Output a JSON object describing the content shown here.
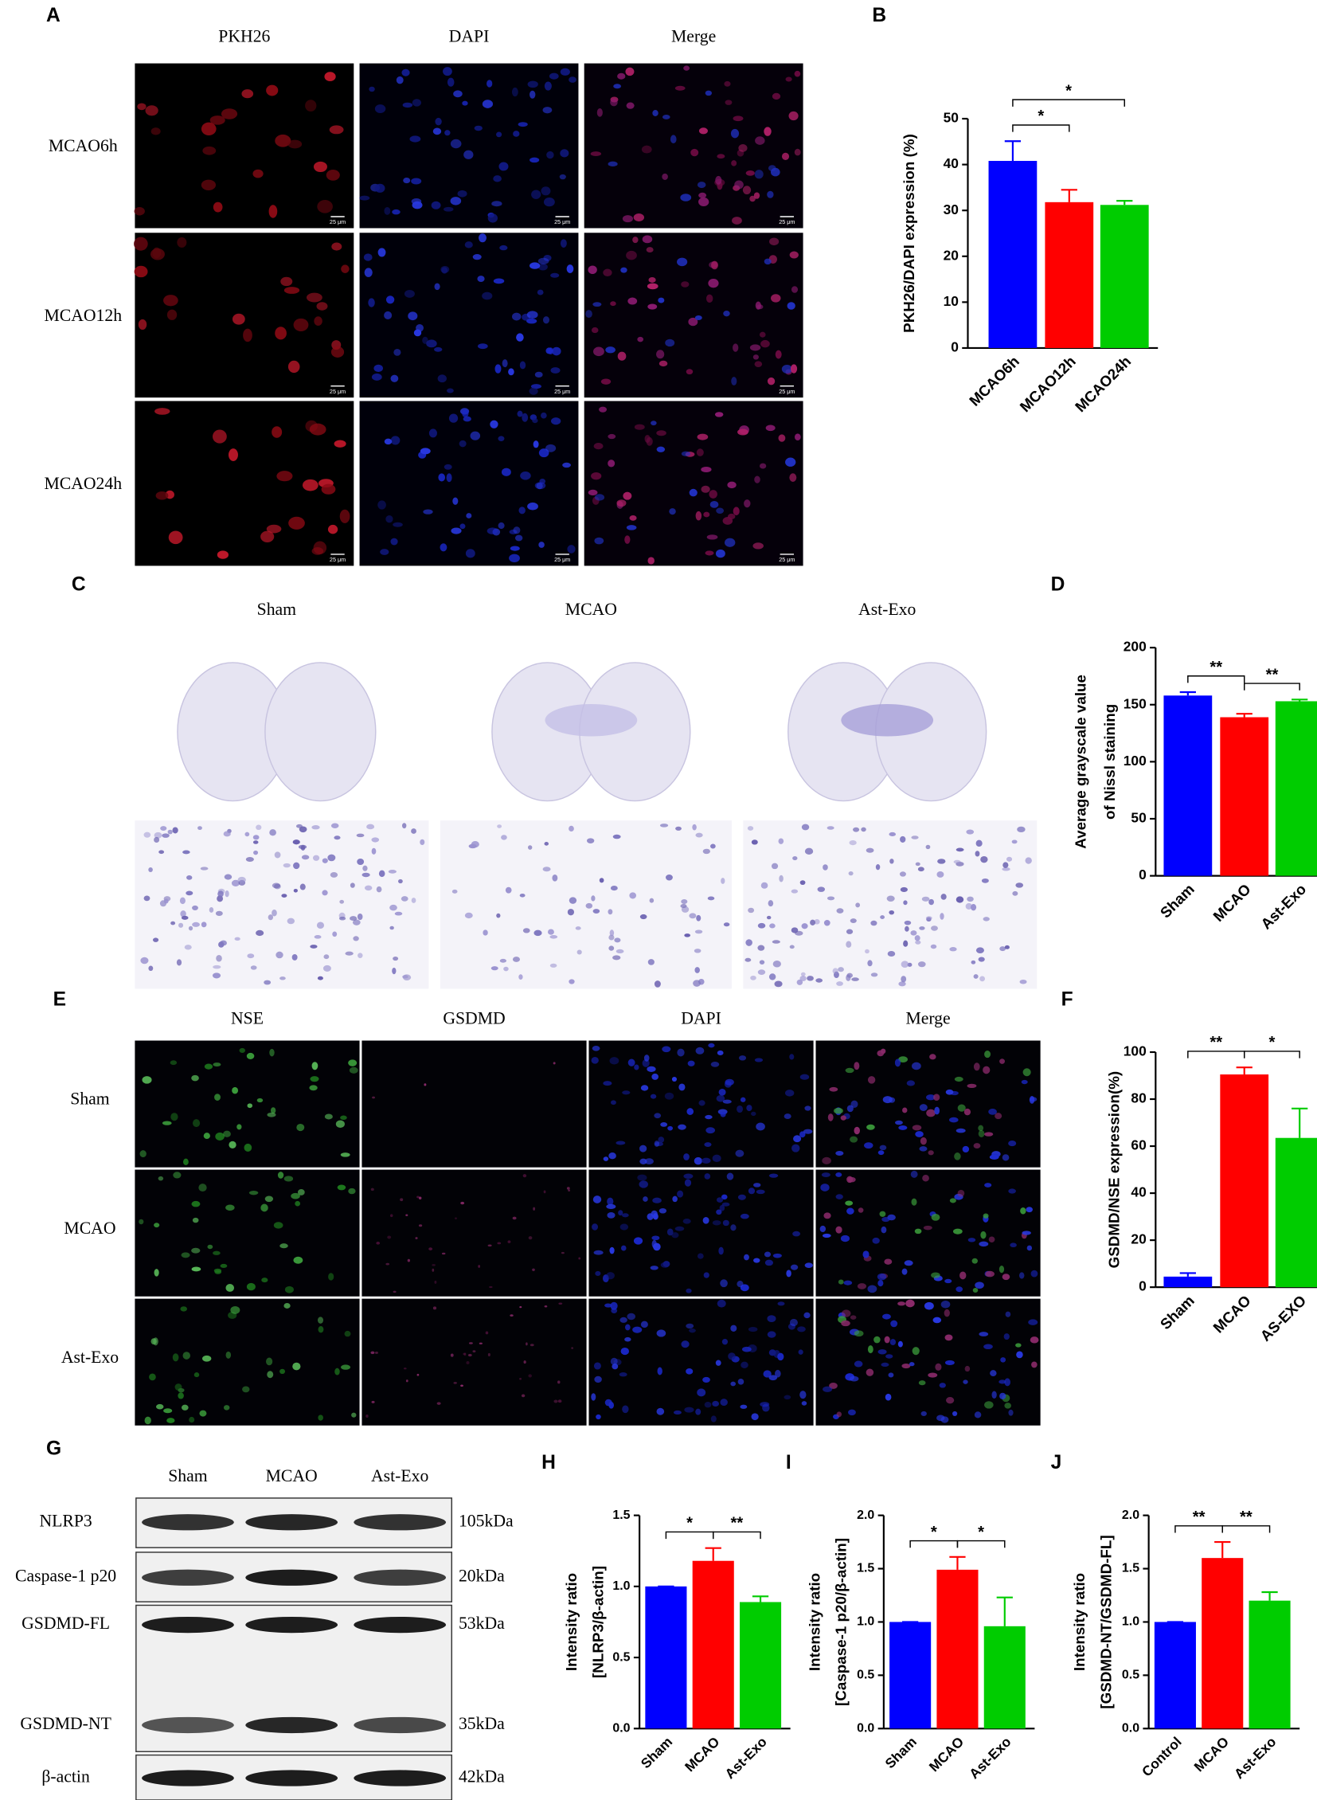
{
  "panels": {
    "A": {
      "label": "A",
      "columns": [
        "PKH26",
        "DAPI",
        "Merge"
      ],
      "rows": [
        "MCAO6h",
        "MCAO12h",
        "MCAO24h"
      ],
      "scale_bar": "25 μm"
    },
    "C": {
      "label": "C",
      "columns": [
        "Sham",
        "MCAO",
        "Ast-Exo"
      ]
    },
    "E": {
      "label": "E",
      "columns": [
        "NSE",
        "GSDMD",
        "DAPI",
        "Merge"
      ],
      "rows": [
        "Sham",
        "MCAO",
        "Ast-Exo"
      ]
    },
    "G": {
      "label": "G",
      "columns": [
        "Sham",
        "MCAO",
        "Ast-Exo"
      ],
      "rows": [
        {
          "protein": "NLRP3",
          "size": "105kDa"
        },
        {
          "protein": "Caspase-1 p20",
          "size": "20kDa"
        },
        {
          "protein": "GSDMD-FL",
          "size": "53kDa"
        },
        {
          "protein": "GSDMD-NT",
          "size": "35kDa"
        },
        {
          "protein": "β-actin",
          "size": "42kDa"
        }
      ]
    }
  },
  "chart_data": [
    {
      "panel": "B",
      "type": "bar",
      "categories": [
        "MCAO6h",
        "MCAO12h",
        "MCAO24h"
      ],
      "values": [
        40.8,
        31.8,
        31.2
      ],
      "errors": [
        4.3,
        2.7,
        0.9
      ],
      "colors": [
        "#0000ff",
        "#ff0000",
        "#00cc00"
      ],
      "ylabel": [
        "PKH26/DAPI expression (%)"
      ],
      "ylim": [
        0,
        50
      ],
      "yticks": [
        0,
        10,
        20,
        30,
        40,
        50
      ],
      "significance": [
        {
          "between": [
            "MCAO6h",
            "MCAO12h"
          ],
          "label": "*"
        },
        {
          "between": [
            "MCAO6h",
            "MCAO24h"
          ],
          "label": "*"
        }
      ]
    },
    {
      "panel": "D",
      "type": "bar",
      "categories": [
        "Sham",
        "MCAO",
        "Ast-Exo"
      ],
      "values": [
        158,
        139,
        153
      ],
      "errors": [
        3,
        3,
        1.5
      ],
      "colors": [
        "#0000ff",
        "#ff0000",
        "#00cc00"
      ],
      "ylabel": [
        "Average grayscale value",
        "of Nissl staining"
      ],
      "ylim": [
        0,
        200
      ],
      "yticks": [
        0,
        50,
        100,
        150,
        200
      ],
      "significance": [
        {
          "between": [
            "Sham",
            "MCAO"
          ],
          "label": "**"
        },
        {
          "between": [
            "MCAO",
            "Ast-Exo"
          ],
          "label": "**"
        }
      ]
    },
    {
      "panel": "F",
      "type": "bar",
      "categories": [
        "Sham",
        "MCAO",
        "AS-EXO"
      ],
      "values": [
        4.5,
        90.5,
        63.5
      ],
      "errors": [
        1.5,
        3,
        12.5
      ],
      "colors": [
        "#0000ff",
        "#ff0000",
        "#00cc00"
      ],
      "ylabel": [
        "GSDMD/NSE expression(%)"
      ],
      "ylim": [
        0,
        100
      ],
      "yticks": [
        0,
        20,
        40,
        60,
        80,
        100
      ],
      "significance": [
        {
          "between": [
            "Sham",
            "MCAO"
          ],
          "label": "**"
        },
        {
          "between": [
            "MCAO",
            "AS-EXO"
          ],
          "label": "*"
        }
      ]
    },
    {
      "panel": "H",
      "type": "bar",
      "categories": [
        "Sham",
        "MCAO",
        "Ast-Exo"
      ],
      "values": [
        1.0,
        1.18,
        0.89
      ],
      "errors": [
        0,
        0.09,
        0.04
      ],
      "colors": [
        "#0000ff",
        "#ff0000",
        "#00cc00"
      ],
      "ylabel": [
        "Intensity ratio",
        "[NLRP3/β-actin]"
      ],
      "ylim": [
        0,
        1.5
      ],
      "yticks": [
        {
          "value": 0,
          "label": "0.0"
        },
        {
          "value": 0.5,
          "label": "0.5"
        },
        {
          "value": 1,
          "label": "1.0"
        },
        {
          "value": 1.5,
          "label": "1.5"
        }
      ],
      "significance": [
        {
          "between": [
            "Sham",
            "MCAO"
          ],
          "label": "*"
        },
        {
          "between": [
            "MCAO",
            "Ast-Exo"
          ],
          "label": "**"
        }
      ]
    },
    {
      "panel": "I",
      "type": "bar",
      "categories": [
        "Sham",
        "MCAO",
        "Ast-Exo"
      ],
      "values": [
        1.0,
        1.49,
        0.96
      ],
      "errors": [
        0,
        0.12,
        0.27
      ],
      "colors": [
        "#0000ff",
        "#ff0000",
        "#00cc00"
      ],
      "ylabel": [
        "Intensity ratio",
        "[Caspase-1 p20/β-actin]"
      ],
      "ylim": [
        0,
        2
      ],
      "yticks": [
        {
          "value": 0,
          "label": "0.0"
        },
        {
          "value": 0.5,
          "label": "0.5"
        },
        {
          "value": 1,
          "label": "1.0"
        },
        {
          "value": 1.5,
          "label": "1.5"
        },
        {
          "value": 2,
          "label": "2.0"
        }
      ],
      "significance": [
        {
          "between": [
            "Sham",
            "MCAO"
          ],
          "label": "*"
        },
        {
          "between": [
            "MCAO",
            "Ast-Exo"
          ],
          "label": "*"
        }
      ]
    },
    {
      "panel": "J",
      "type": "bar",
      "categories": [
        "Control",
        "MCAO",
        "Ast-Exo"
      ],
      "values": [
        1.0,
        1.6,
        1.2
      ],
      "errors": [
        0,
        0.15,
        0.08
      ],
      "colors": [
        "#0000ff",
        "#ff0000",
        "#00cc00"
      ],
      "ylabel": [
        "Intensity ratio",
        "[GSDMD-NT/GSDMD-FL]"
      ],
      "ylim": [
        0,
        2
      ],
      "yticks": [
        {
          "value": 0,
          "label": "0.0"
        },
        {
          "value": 0.5,
          "label": "0.5"
        },
        {
          "value": 1,
          "label": "1.0"
        },
        {
          "value": 1.5,
          "label": "1.5"
        },
        {
          "value": 2,
          "label": "2.0"
        }
      ],
      "significance": [
        {
          "between": [
            "Control",
            "MCAO"
          ],
          "label": "**"
        },
        {
          "between": [
            "MCAO",
            "Ast-Exo"
          ],
          "label": "**"
        }
      ]
    }
  ]
}
